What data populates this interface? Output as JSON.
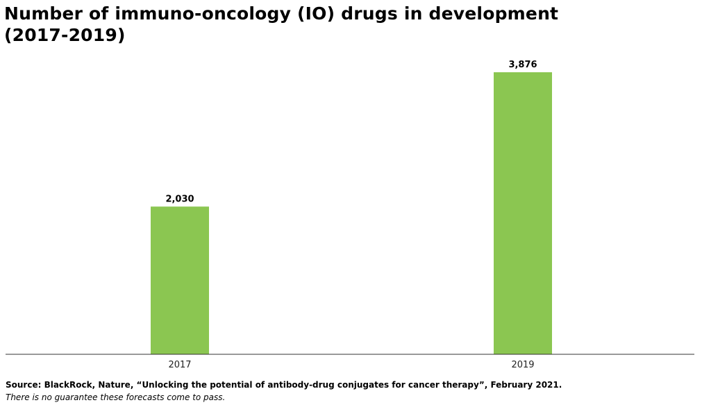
{
  "chart_data": {
    "type": "bar",
    "title_line1": "Number of immuno-oncology (IO) drugs in development",
    "title_line2": "(2017-2019)",
    "categories": [
      "2017",
      "2019"
    ],
    "values": [
      2030,
      3876
    ],
    "data_labels": [
      "2,030",
      "3,876"
    ],
    "xlabel": "",
    "ylabel": "",
    "ylim": [
      0,
      3876
    ],
    "grid": false,
    "legend": "none",
    "bar_color": "#8BC651",
    "axis_color": "#333333"
  },
  "footer": {
    "source": "Source: BlackRock, Nature, “Unlocking the potential of antibody-drug conjugates for cancer therapy”, February 2021.",
    "disclaimer": "There is no guarantee these forecasts come to pass."
  }
}
